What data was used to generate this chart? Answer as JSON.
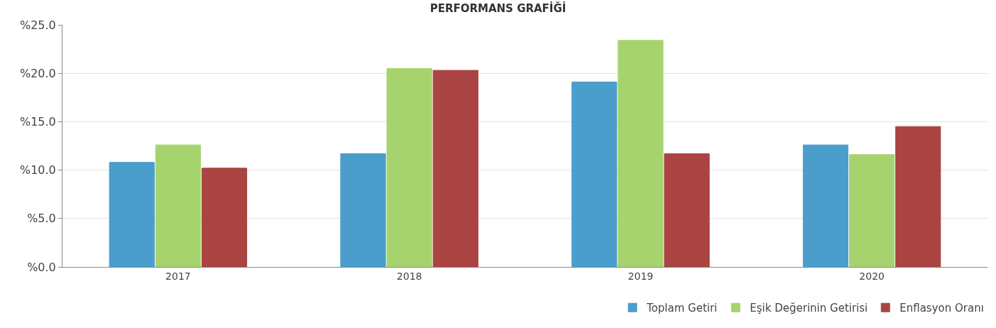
{
  "chart_data": {
    "type": "bar",
    "title": "PERFORMANS GRAFİĞİ",
    "categories": [
      "2017",
      "2018",
      "2019",
      "2020"
    ],
    "series": [
      {
        "name": "Toplam Getiri",
        "color": "#4b9dcb",
        "values": [
          10.8,
          11.7,
          19.1,
          12.6
        ]
      },
      {
        "name": "Eşik Değerinin Getirisi",
        "color": "#a7d36f",
        "values": [
          12.6,
          20.5,
          23.4,
          11.6
        ]
      },
      {
        "name": "Enflasyon Oranı",
        "color": "#a94442",
        "values": [
          10.2,
          20.3,
          11.7,
          14.5
        ]
      }
    ],
    "ylim": [
      0,
      25
    ],
    "yticks": [
      {
        "value": 0,
        "label": "%0.0"
      },
      {
        "value": 5,
        "label": "%5.0"
      },
      {
        "value": 10,
        "label": "%10.0"
      },
      {
        "value": 15,
        "label": "%15.0"
      },
      {
        "value": 20,
        "label": "%20.0"
      },
      {
        "value": 25,
        "label": "%25.0"
      }
    ],
    "grid": "y",
    "legend": "bottom right"
  }
}
